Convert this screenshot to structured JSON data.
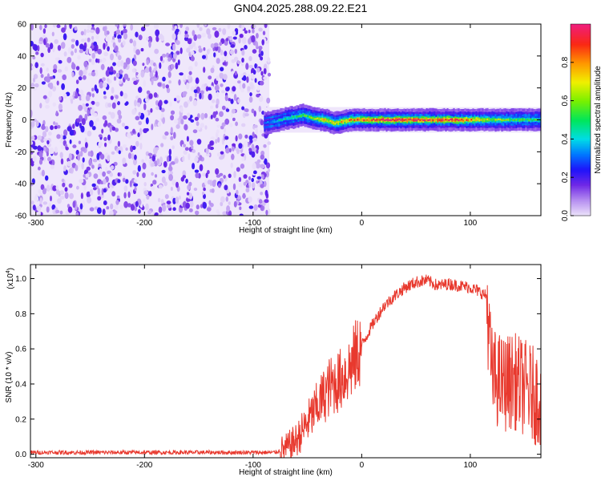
{
  "title": "GN04.2025.288.09.22.E21",
  "chart_data": [
    {
      "type": "heatmap",
      "xlabel": "Height of straight line (km)",
      "ylabel": "Frequency (Hz)",
      "xlim": [
        -305,
        165
      ],
      "ylim": [
        -60,
        60
      ],
      "xticks": [
        -300,
        -200,
        -100,
        0,
        100
      ],
      "yticks": [
        -60,
        -40,
        -20,
        0,
        20,
        40,
        60
      ],
      "colorbar": {
        "label": "Normalized spectral amplitude",
        "range": [
          0,
          1
        ],
        "ticks": [
          0.0,
          0.2,
          0.4,
          0.6,
          0.8
        ]
      },
      "noise_region": {
        "x": [
          -305,
          -85
        ],
        "amplitude": 0.2
      },
      "signal_band": [
        {
          "x": -90,
          "freq": -2,
          "amplitude": 0.3
        },
        {
          "x": -80,
          "freq": -1,
          "amplitude": 0.4
        },
        {
          "x": -70,
          "freq": 1,
          "amplitude": 0.45
        },
        {
          "x": -60,
          "freq": 2,
          "amplitude": 0.5
        },
        {
          "x": -55,
          "freq": 3,
          "amplitude": 0.55
        },
        {
          "x": -45,
          "freq": 1,
          "amplitude": 0.6
        },
        {
          "x": -35,
          "freq": 0,
          "amplitude": 0.75
        },
        {
          "x": -25,
          "freq": -2,
          "amplitude": 0.7
        },
        {
          "x": -10,
          "freq": 0,
          "amplitude": 0.8
        },
        {
          "x": 0,
          "freq": 0,
          "amplitude": 0.85
        },
        {
          "x": 20,
          "freq": 0,
          "amplitude": 0.95
        },
        {
          "x": 40,
          "freq": 0,
          "amplitude": 0.95
        },
        {
          "x": 60,
          "freq": 0,
          "amplitude": 0.9
        },
        {
          "x": 80,
          "freq": 0,
          "amplitude": 0.95
        },
        {
          "x": 100,
          "freq": 0,
          "amplitude": 0.8
        },
        {
          "x": 120,
          "freq": 0,
          "amplitude": 0.6
        },
        {
          "x": 140,
          "freq": 0,
          "amplitude": 0.55
        },
        {
          "x": 165,
          "freq": 0,
          "amplitude": 0.5
        }
      ]
    },
    {
      "type": "line",
      "xlabel": "Height of straight line (km)",
      "ylabel": "SNR (10 * v/v)",
      "multiplier_label": "(x10",
      "multiplier_exp": "4",
      "xlim": [
        -305,
        165
      ],
      "ylim": [
        -0.02,
        1.08
      ],
      "xticks": [
        -300,
        -200,
        -100,
        0,
        100
      ],
      "yticks": [
        0.0,
        0.2,
        0.4,
        0.6,
        0.8,
        1.0
      ],
      "color": "#e8392e",
      "series": [
        {
          "x": [
            -305,
            -250,
            -200,
            -150,
            -100,
            -80,
            -70,
            -60,
            -50,
            -40,
            -30,
            -20,
            -10,
            0,
            10,
            20,
            30,
            40,
            50,
            60,
            70,
            80,
            90,
            100,
            110,
            115,
            118,
            120,
            130,
            140,
            150,
            160,
            165
          ],
          "values": [
            0.01,
            0.01,
            0.01,
            0.01,
            0.01,
            0.01,
            0.03,
            0.08,
            0.18,
            0.28,
            0.38,
            0.42,
            0.5,
            0.62,
            0.74,
            0.84,
            0.9,
            0.95,
            0.98,
            0.99,
            0.96,
            0.97,
            0.96,
            0.95,
            0.92,
            0.9,
            0.6,
            0.45,
            0.4,
            0.42,
            0.38,
            0.33,
            0.32
          ]
        }
      ]
    }
  ]
}
